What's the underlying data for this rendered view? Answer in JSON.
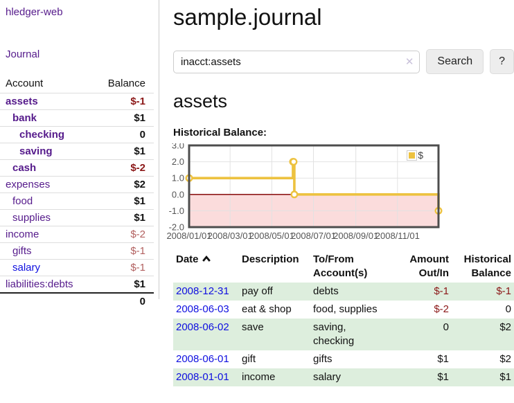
{
  "colors": {
    "accent_purple": "#551a8b",
    "link_blue": "#0f0fe0",
    "neg_strong": "#8b1717",
    "neg_soft": "#b2605f",
    "row_stripe": "#ddeedd"
  },
  "sidebar": {
    "brand": "hledger-web",
    "journal_link": "Journal",
    "table_header": {
      "account": "Account",
      "balance": "Balance"
    },
    "accounts": [
      {
        "name": "assets",
        "balance": "$-1",
        "name_class": "ind0 bold",
        "amt_class": "neg"
      },
      {
        "name": "bank",
        "balance": "$1",
        "name_class": "ind1 bold",
        "amt_class": ""
      },
      {
        "name": "checking",
        "balance": "0",
        "name_class": "ind2 bold",
        "amt_class": ""
      },
      {
        "name": "saving",
        "balance": "$1",
        "name_class": "ind2 bold",
        "amt_class": ""
      },
      {
        "name": "cash",
        "balance": "$-2",
        "name_class": "ind1 bold",
        "amt_class": "neg"
      },
      {
        "name": "expenses",
        "balance": "$2",
        "name_class": "ind0",
        "amt_class": ""
      },
      {
        "name": "food",
        "balance": "$1",
        "name_class": "ind1",
        "amt_class": ""
      },
      {
        "name": "supplies",
        "balance": "$1",
        "name_class": "ind1",
        "amt_class": ""
      },
      {
        "name": "income",
        "balance": "$-2",
        "name_class": "ind0",
        "amt_class": "soft"
      },
      {
        "name": "gifts",
        "balance": "$-1",
        "name_class": "ind1",
        "amt_class": "soft"
      },
      {
        "name": "salary",
        "balance": "$-1",
        "name_class": "ind1 blue",
        "amt_class": "soft"
      },
      {
        "name": "liabilities:debts",
        "balance": "$1",
        "name_class": "ind0",
        "amt_class": ""
      }
    ],
    "total": "0"
  },
  "main": {
    "title": "sample.journal",
    "search": {
      "value": "inacct:assets",
      "clear_icon": "✕",
      "search_button": "Search",
      "help_button": "?"
    },
    "account_heading": "assets",
    "chart_title": "Historical Balance:"
  },
  "chart_data": {
    "type": "line",
    "step": true,
    "title": "Historical Balance of assets",
    "legend": {
      "label": "$",
      "position": "top-right"
    },
    "series": [
      {
        "name": "$",
        "points": [
          [
            "2008/01/01",
            1
          ],
          [
            "2008/06/01",
            2
          ],
          [
            "2008/06/02",
            2
          ],
          [
            "2008/06/03",
            0
          ],
          [
            "2008/12/31",
            -1
          ]
        ]
      }
    ],
    "xlim": [
      "2008/01/01",
      "2008/12/31"
    ],
    "ylim": [
      -2,
      3
    ],
    "yticks": [
      {
        "v": 3,
        "label": "3.0"
      },
      {
        "v": 2,
        "label": "2.0"
      },
      {
        "v": 1,
        "label": "1.0"
      },
      {
        "v": 0,
        "label": "0.0"
      },
      {
        "v": -1,
        "label": "-1.0"
      },
      {
        "v": -2,
        "label": "-2.0"
      }
    ],
    "xticks": [
      {
        "v": "2008/01/01",
        "label": "2008/01/01"
      },
      {
        "v": "2008/03/01",
        "label": "2008/03/01"
      },
      {
        "v": "2008/05/01",
        "label": "2008/05/01"
      },
      {
        "v": "2008/07/01",
        "label": "2008/07/01"
      },
      {
        "v": "2008/09/01",
        "label": "2008/09/01"
      },
      {
        "v": "2008/11/01",
        "label": "2008/11/01"
      }
    ],
    "grid": true,
    "colors": {
      "series": "#EDC240",
      "negative_region": "#fbdcdc",
      "zero_line": "#8e1a1a",
      "grid_line": "#e2e2e2",
      "plot_border": "#4d4d4d",
      "axis_text": "#545454"
    }
  },
  "register": {
    "columns": [
      {
        "label": "Date",
        "sort": "ascending"
      },
      {
        "label": "Description"
      },
      {
        "label": "To/From Account(s)"
      },
      {
        "label": "Amount Out/In"
      },
      {
        "label": "Historical Balance"
      }
    ],
    "rows": [
      {
        "date": "2008-12-31",
        "description": "pay off",
        "accounts": "debts",
        "amount": "$-1",
        "balance": "$-1",
        "amount_class": "r neg",
        "balance_class": "r neg",
        "row_class": "stripe"
      },
      {
        "date": "2008-06-03",
        "description": "eat & shop",
        "accounts": "food, supplies",
        "amount": "$-2",
        "balance": "0",
        "amount_class": "r neg",
        "balance_class": "r",
        "row_class": ""
      },
      {
        "date": "2008-06-02",
        "description": "save",
        "accounts": "saving,\nchecking",
        "amount": "0",
        "balance": "$2",
        "amount_class": "r",
        "balance_class": "r",
        "row_class": "stripe"
      },
      {
        "date": "2008-06-01",
        "description": "gift",
        "accounts": "gifts",
        "amount": "$1",
        "balance": "$2",
        "amount_class": "r",
        "balance_class": "r",
        "row_class": ""
      },
      {
        "date": "2008-01-01",
        "description": "income",
        "accounts": "salary",
        "amount": "$1",
        "balance": "$1",
        "amount_class": "r",
        "balance_class": "r",
        "row_class": "stripe"
      }
    ]
  }
}
